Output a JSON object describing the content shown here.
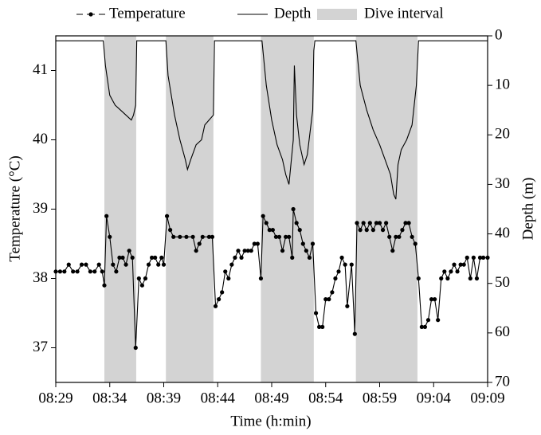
{
  "chart_data": {
    "type": "line",
    "x_label": "Time (h:min)",
    "y_label": "Temperature (°C)",
    "y2_label": "Depth (m)",
    "xlim": [
      509,
      549
    ],
    "xticks": [
      {
        "value": 509,
        "label": "08:29"
      },
      {
        "value": 514,
        "label": "08:34"
      },
      {
        "value": 519,
        "label": "08:39"
      },
      {
        "value": 524,
        "label": "08:44"
      },
      {
        "value": 529,
        "label": "08:49"
      },
      {
        "value": 534,
        "label": "08:54"
      },
      {
        "value": 539,
        "label": "08:59"
      },
      {
        "value": 544,
        "label": "09:04"
      },
      {
        "value": 549,
        "label": "09:09"
      }
    ],
    "ylim": [
      36.5,
      41.5
    ],
    "yticks": [
      37,
      38,
      39,
      40,
      41
    ],
    "y2lim": [
      70,
      0
    ],
    "y2ticks": [
      0,
      10,
      20,
      30,
      40,
      50,
      60,
      70
    ],
    "intervals": {
      "name": "Dive interval",
      "color": "#d3d3d3",
      "ranges": [
        [
          513.5,
          516.45
        ],
        [
          519.2,
          523.6
        ],
        [
          528.0,
          532.9
        ],
        [
          536.8,
          542.5
        ]
      ]
    },
    "series": [
      {
        "name": "Temperature",
        "color": "#000000",
        "markers": true,
        "x": [
          509,
          509.4,
          509.8,
          510.2,
          510.6,
          511,
          511.4,
          511.8,
          512.2,
          512.6,
          513,
          513.3,
          513.5,
          513.7,
          514,
          514.3,
          514.6,
          514.9,
          515.2,
          515.5,
          515.8,
          516.1,
          516.4,
          516.7,
          517,
          517.3,
          517.6,
          517.9,
          518.2,
          518.5,
          518.8,
          519,
          519.3,
          519.6,
          519.9,
          520.5,
          521.1,
          521.7,
          522,
          522.3,
          522.6,
          523.2,
          523.5,
          523.8,
          524.1,
          524.4,
          524.7,
          525,
          525.3,
          525.6,
          525.9,
          526.2,
          526.5,
          526.8,
          527.1,
          527.4,
          527.7,
          528,
          528.2,
          528.5,
          528.8,
          529.1,
          529.4,
          529.7,
          530,
          530.3,
          530.6,
          530.9,
          531,
          531.3,
          531.6,
          531.9,
          532.2,
          532.5,
          532.8,
          533.1,
          533.4,
          533.7,
          534,
          534.3,
          534.6,
          534.9,
          535.2,
          535.5,
          535.8,
          536,
          536.4,
          536.7,
          536.9,
          537.2,
          537.5,
          537.8,
          538.1,
          538.4,
          538.7,
          539,
          539.3,
          539.6,
          539.9,
          540.2,
          540.5,
          540.8,
          541.1,
          541.4,
          541.7,
          542,
          542.3,
          542.6,
          542.9,
          543.2,
          543.5,
          543.8,
          544.1,
          544.4,
          544.7,
          545,
          545.3,
          545.6,
          545.9,
          546.2,
          546.5,
          546.8,
          547.1,
          547.4,
          547.7,
          548,
          548.3,
          548.6,
          549
        ],
        "values": [
          38.1,
          38.1,
          38.1,
          38.2,
          38.1,
          38.1,
          38.2,
          38.2,
          38.1,
          38.1,
          38.2,
          38.1,
          37.9,
          38.9,
          38.6,
          38.2,
          38.1,
          38.3,
          38.3,
          38.2,
          38.4,
          38.3,
          37.0,
          38.0,
          37.9,
          38.0,
          38.2,
          38.3,
          38.3,
          38.2,
          38.3,
          38.2,
          38.9,
          38.7,
          38.6,
          38.6,
          38.6,
          38.6,
          38.4,
          38.5,
          38.6,
          38.6,
          38.6,
          37.6,
          37.7,
          37.8,
          38.1,
          38.0,
          38.2,
          38.3,
          38.4,
          38.3,
          38.4,
          38.4,
          38.4,
          38.5,
          38.5,
          38.0,
          38.9,
          38.8,
          38.7,
          38.7,
          38.6,
          38.6,
          38.4,
          38.6,
          38.6,
          38.3,
          39.0,
          38.8,
          38.7,
          38.5,
          38.4,
          38.3,
          38.5,
          37.5,
          37.3,
          37.3,
          37.7,
          37.7,
          37.8,
          38.0,
          38.1,
          38.3,
          38.2,
          37.6,
          38.2,
          37.2,
          38.8,
          38.7,
          38.8,
          38.7,
          38.8,
          38.7,
          38.8,
          38.8,
          38.7,
          38.8,
          38.6,
          38.4,
          38.6,
          38.6,
          38.7,
          38.8,
          38.8,
          38.6,
          38.5,
          38.0,
          37.3,
          37.3,
          37.4,
          37.7,
          37.7,
          37.4,
          38.0,
          38.1,
          38.0,
          38.1,
          38.2,
          38.1,
          38.2,
          38.2,
          38.3,
          38.0,
          38.3,
          38.0,
          38.3,
          38.3,
          38.3
        ]
      },
      {
        "name": "Depth",
        "color": "#000000",
        "axis": "y2",
        "x": [
          509,
          513.4,
          513.6,
          514,
          514.5,
          515,
          515.5,
          516,
          516.2,
          516.4,
          516.5,
          519.2,
          519.4,
          520,
          520.5,
          521,
          521.2,
          521.5,
          522,
          522.5,
          522.8,
          523.2,
          523.6,
          523.7,
          528.1,
          528.5,
          529,
          529.5,
          530,
          530.3,
          530.6,
          531,
          531.1,
          531.3,
          531.6,
          532,
          532.3,
          532.8,
          532.9,
          533,
          536.8,
          537.2,
          537.8,
          538.4,
          539,
          539.5,
          540,
          540.3,
          540.5,
          540.7,
          541,
          541.5,
          542,
          542.4,
          542.6,
          549
        ],
        "values": [
          1,
          1,
          6,
          12,
          14,
          15,
          16,
          17,
          16,
          14,
          1,
          1,
          8,
          16,
          21,
          25,
          27,
          25,
          22,
          21,
          18,
          17,
          16,
          1,
          1,
          10,
          17,
          22,
          25,
          28,
          30,
          21,
          6,
          16,
          22,
          26,
          24,
          15,
          3,
          1,
          1,
          10,
          15,
          19,
          22,
          25,
          28,
          32,
          33,
          26,
          23,
          21,
          18,
          10,
          1,
          1
        ]
      }
    ]
  }
}
